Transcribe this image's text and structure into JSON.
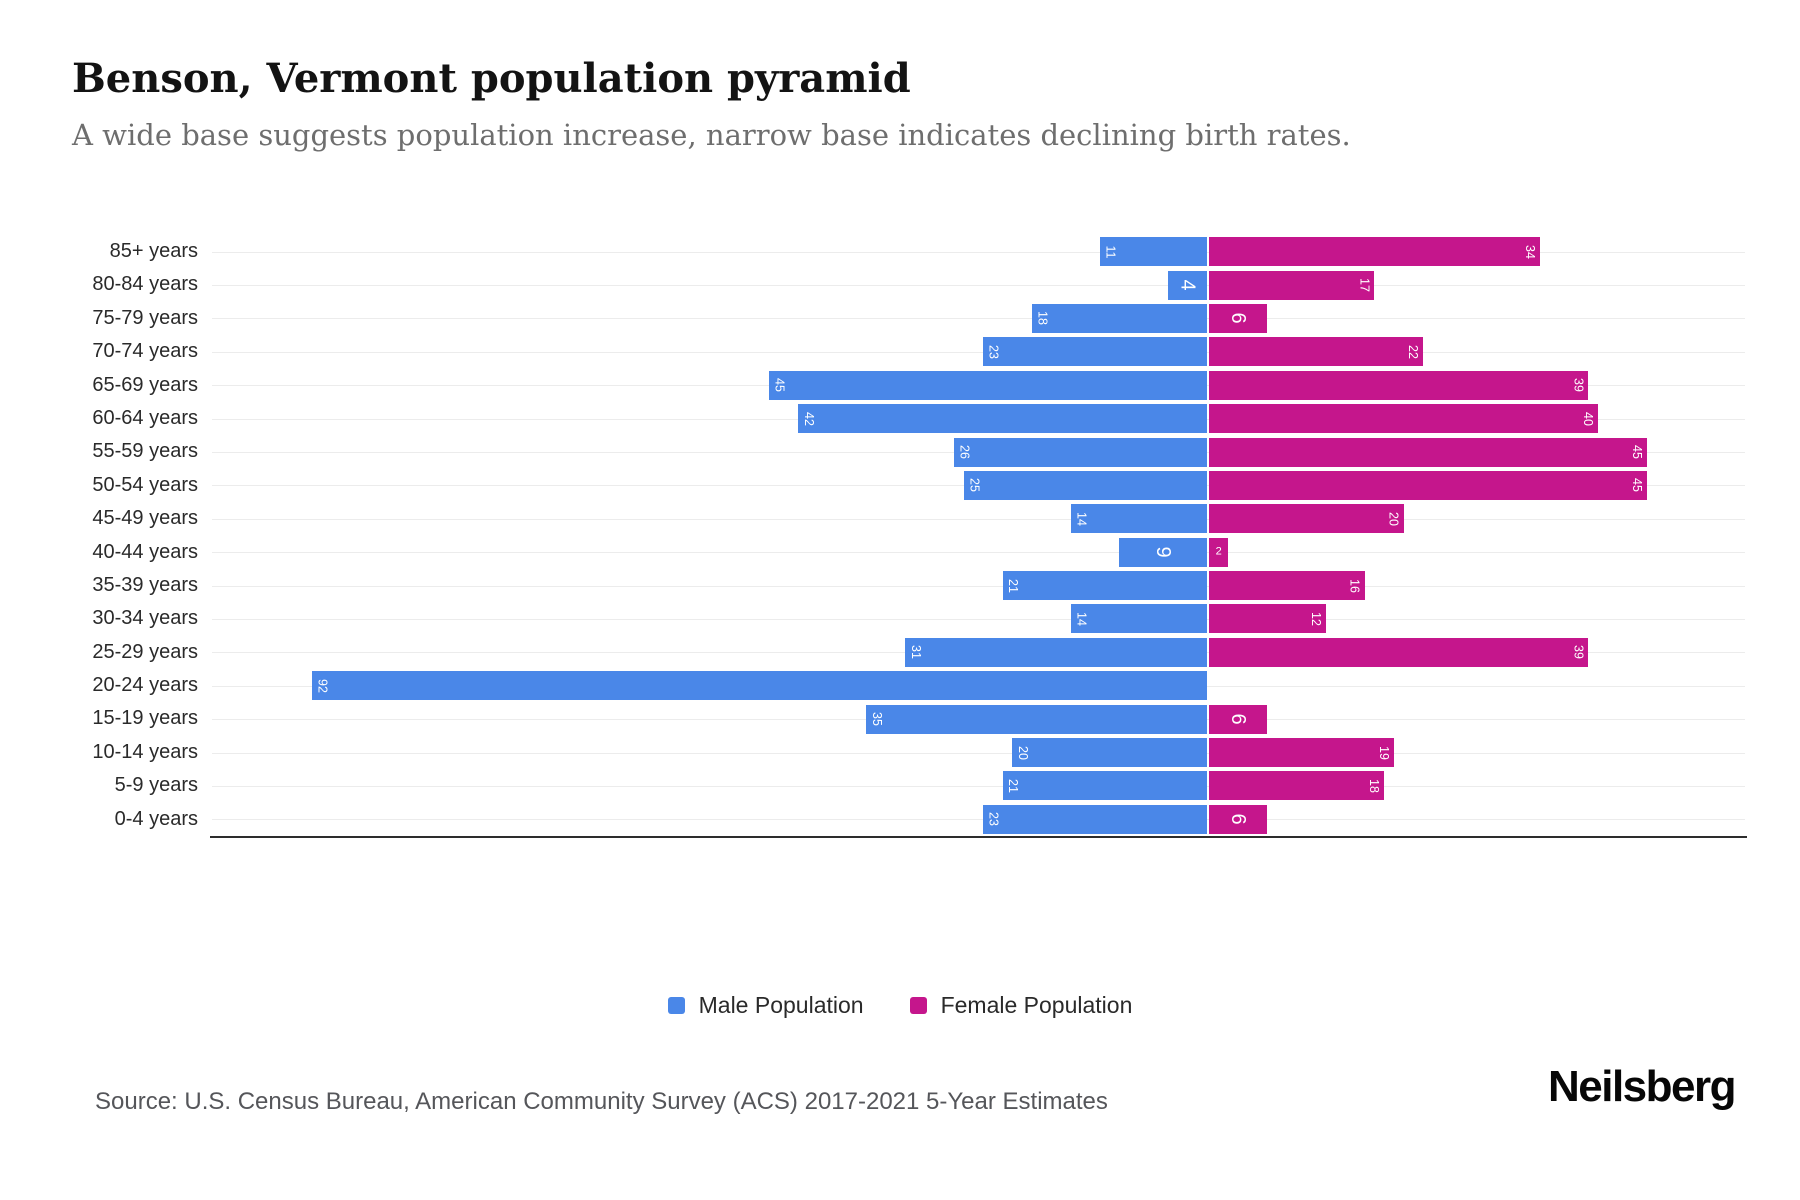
{
  "header": {
    "title": "Benson, Vermont population pyramid",
    "subtitle": "A wide base suggests population increase, narrow base indicates declining birth rates."
  },
  "chart_data": {
    "type": "bar",
    "variant": "population-pyramid",
    "orientation": "horizontal",
    "grid": "horizontal-light",
    "legend_position": "bottom",
    "value_labels": "inside-bar-outer-end, rotated 90deg, white",
    "categories": [
      "85+ years",
      "80-84 years",
      "75-79 years",
      "70-74 years",
      "65-69 years",
      "60-64 years",
      "55-59 years",
      "50-54 years",
      "45-49 years",
      "40-44 years",
      "35-39 years",
      "30-34 years",
      "25-29 years",
      "20-24 years",
      "15-19 years",
      "10-14 years",
      "5-9 years",
      "0-4 years"
    ],
    "series": [
      {
        "name": "Male Population",
        "side": "left",
        "color": "#4a87e8",
        "values": [
          11,
          4,
          18,
          23,
          45,
          42,
          26,
          25,
          14,
          9,
          21,
          14,
          31,
          92,
          35,
          20,
          21,
          23
        ]
      },
      {
        "name": "Female Population",
        "side": "right",
        "color": "#c5168c",
        "values": [
          34,
          17,
          6,
          22,
          39,
          40,
          45,
          45,
          20,
          2,
          16,
          12,
          39,
          0,
          6,
          19,
          18,
          6
        ]
      }
    ]
  },
  "legend": {
    "items": [
      {
        "label": "Male Population",
        "color": "#4a87e8"
      },
      {
        "label": "Female Population",
        "color": "#c5168c"
      }
    ]
  },
  "footer": {
    "source": "Source: U.S. Census Bureau, American Community Survey (ACS) 2017-2021 5-Year Estimates",
    "brand": "Neilsberg"
  }
}
